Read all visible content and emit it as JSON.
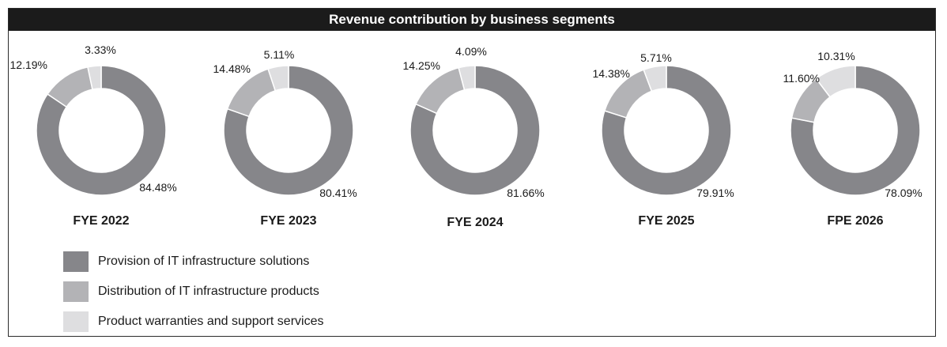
{
  "chart_data": {
    "type": "pie",
    "title": "Revenue contribution by business segments",
    "series_names": [
      "Provision of IT infrastructure solutions",
      "Distribution of IT infrastructure products",
      "Product warranties and support services"
    ],
    "colors": [
      "#86868a",
      "#b3b3b6",
      "#dedee0"
    ],
    "charts": [
      {
        "label": "FYE 2022",
        "values": [
          84.48,
          12.19,
          3.33
        ],
        "value_labels": [
          "84.48%",
          "12.19%",
          "3.33%"
        ]
      },
      {
        "label": "FYE 2023",
        "values": [
          80.41,
          14.48,
          5.11
        ],
        "value_labels": [
          "80.41%",
          "14.48%",
          "5.11%"
        ]
      },
      {
        "label": "FYE 2024",
        "values": [
          81.66,
          14.25,
          4.09
        ],
        "value_labels": [
          "81.66%",
          "14.25%",
          "4.09%"
        ]
      },
      {
        "label": "FYE 2025",
        "values": [
          79.91,
          14.38,
          5.71
        ],
        "value_labels": [
          "79.91%",
          "14.38%",
          "5.71%"
        ]
      },
      {
        "label": "FPE 2026",
        "values": [
          78.09,
          11.6,
          10.31
        ],
        "value_labels": [
          "78.09%",
          "11.60%",
          "10.31%"
        ]
      }
    ],
    "legend": [
      "Provision of IT infrastructure solutions",
      "Distribution of IT infrastructure products",
      "Product warranties and support services"
    ]
  }
}
